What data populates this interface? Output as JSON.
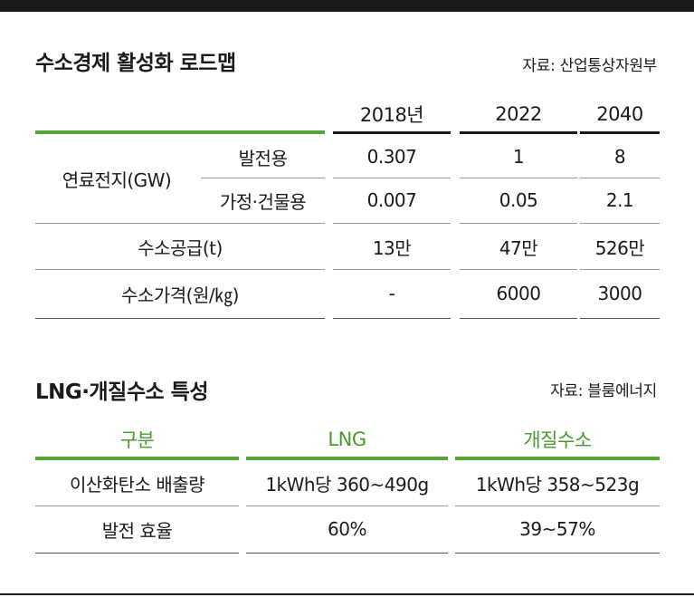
{
  "roadmap": {
    "title": "수소경제 활성화 로드맵",
    "source": "자료: 산업통상자원부",
    "columns": [
      "2018년",
      "2022",
      "2040"
    ],
    "group_label": "연료전지(GW)",
    "rows": [
      {
        "label": "발전용",
        "values": [
          "0.307",
          "1",
          "8"
        ]
      },
      {
        "label": "가정·건물용",
        "values": [
          "0.007",
          "0.05",
          "2.1"
        ]
      },
      {
        "label": "수소공급(t)",
        "values": [
          "13만",
          "47만",
          "526만"
        ]
      },
      {
        "label": "수소가격(원/㎏)",
        "values": [
          "-",
          "6000",
          "3000"
        ]
      }
    ]
  },
  "lng": {
    "title": "LNG·개질수소 특성",
    "source": "자료: 블룸에너지",
    "headers": [
      "구분",
      "LNG",
      "개질수소"
    ],
    "rows": [
      {
        "label": "이산화탄소 배출량",
        "values": [
          "1kWh당 360~490g",
          "1kWh당 358~523g"
        ]
      },
      {
        "label": "발전 효율",
        "values": [
          "60%",
          "39~57%"
        ]
      }
    ]
  },
  "colors": {
    "accent_green": "#56a53a",
    "header_green": "#4a9a2c",
    "rule_dark": "#1a1a1a"
  }
}
